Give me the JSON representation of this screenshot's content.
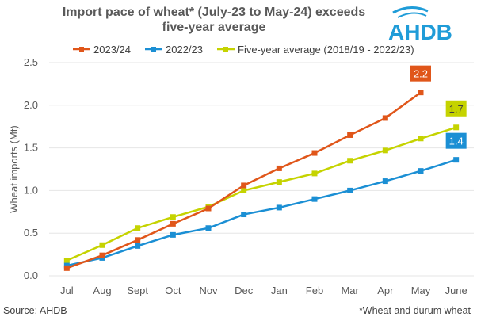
{
  "chart_data": {
    "type": "line",
    "title": "Import pace of wheat* (July-23 to May-24) exceeds five-year average",
    "xlabel": "",
    "ylabel": "Wheat imports (Mt)",
    "ylim": [
      0,
      2.5
    ],
    "yticks": [
      "0.0",
      "0.5",
      "1.0",
      "1.5",
      "2.0",
      "2.5"
    ],
    "grid": true,
    "legend_position": "top",
    "categories": [
      "Jul",
      "Aug",
      "Sept",
      "Oct",
      "Nov",
      "Dec",
      "Jan",
      "Feb",
      "Mar",
      "Apr",
      "May",
      "June"
    ],
    "series": [
      {
        "name": "2023/24",
        "color": "#E0561A",
        "values": [
          0.09,
          0.24,
          0.42,
          0.61,
          0.79,
          1.06,
          1.26,
          1.44,
          1.65,
          1.85,
          2.15,
          null
        ],
        "end_label": "2.2"
      },
      {
        "name": "2022/23",
        "color": "#1B8FD4",
        "values": [
          0.12,
          0.21,
          0.35,
          0.48,
          0.56,
          0.72,
          0.8,
          0.9,
          1.0,
          1.11,
          1.23,
          1.36
        ],
        "end_label": "1.4"
      },
      {
        "name": "Five-year average (2018/19 - 2022/23)",
        "color": "#C5D300",
        "values": [
          0.18,
          0.36,
          0.56,
          0.69,
          0.81,
          1.0,
          1.1,
          1.2,
          1.35,
          1.47,
          1.61,
          1.74
        ],
        "end_label": "1.7"
      }
    ]
  },
  "title_line1": "Import pace of wheat* (July-23 to May-24) exceeds",
  "title_line2": "five-year average",
  "logo_text": "AHDB",
  "source": "Source: AHDB",
  "footnote": "*Wheat and durum wheat"
}
